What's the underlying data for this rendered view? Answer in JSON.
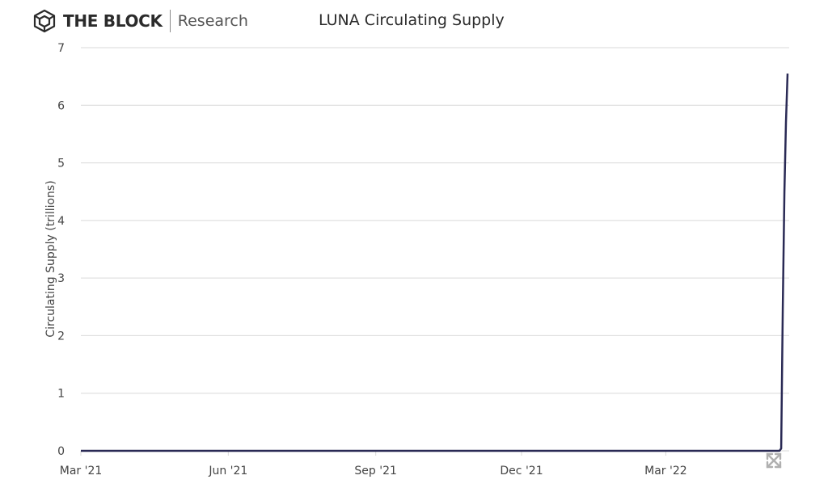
{
  "header": {
    "brand": "THE BLOCK",
    "brand_sub": "Research",
    "logo_icon": "the-block-cube-icon"
  },
  "colors": {
    "line": "#2a2a55",
    "grid": "#d9d9d9",
    "axis_text": "#444444",
    "icon": "#b0b0b0"
  },
  "chart_data": {
    "type": "line",
    "title": "LUNA Circulating Supply",
    "xlabel": "",
    "ylabel": "Circulating Supply (trillions)",
    "ylim": [
      0,
      7
    ],
    "yticks": [
      0,
      1,
      2,
      3,
      4,
      5,
      6,
      7
    ],
    "xlim": [
      "2021-03-01",
      "2022-05-17"
    ],
    "xticks": [
      {
        "date": "2021-03-01",
        "label": "Mar '21"
      },
      {
        "date": "2021-06-01",
        "label": "Jun '21"
      },
      {
        "date": "2021-09-01",
        "label": "Sep '21"
      },
      {
        "date": "2021-12-01",
        "label": "Dec '21"
      },
      {
        "date": "2022-03-01",
        "label": "Mar '22"
      }
    ],
    "grid": true,
    "legend": "none",
    "series": [
      {
        "x": [
          "2021-03-01",
          "2022-05-07",
          "2022-05-10",
          "2022-05-11",
          "2022-05-12",
          "2022-05-13",
          "2022-05-14",
          "2022-05-15",
          "2022-05-16"
        ],
        "y": [
          0.0004,
          0.0004,
          0.0004,
          0.001,
          0.04,
          2.5,
          4.5,
          5.7,
          6.55
        ]
      }
    ]
  },
  "controls": {
    "expand_icon": "expand-arrows-icon"
  }
}
